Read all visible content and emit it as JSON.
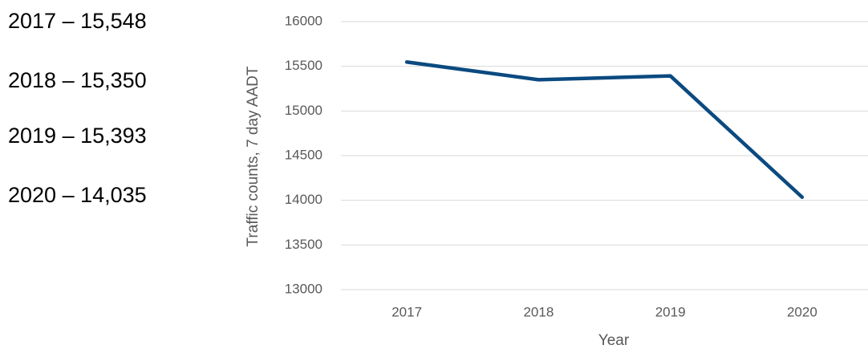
{
  "chart_data": {
    "type": "line",
    "annotations": [
      "2017 – 15,548",
      "2018 – 15,350",
      "2019 – 15,393",
      "2020 – 14,035"
    ],
    "x_label": "Year",
    "y_label": "Traffic counts, 7 day AADT",
    "categories": [
      "2017",
      "2018",
      "2019",
      "2020"
    ],
    "values": [
      15548,
      15350,
      15393,
      14035
    ],
    "color": "#0b4a80",
    "ylim": [
      13000,
      16000
    ],
    "yticks": [
      13000,
      13500,
      14000,
      14500,
      15000,
      15500,
      16000
    ],
    "grid": true
  }
}
